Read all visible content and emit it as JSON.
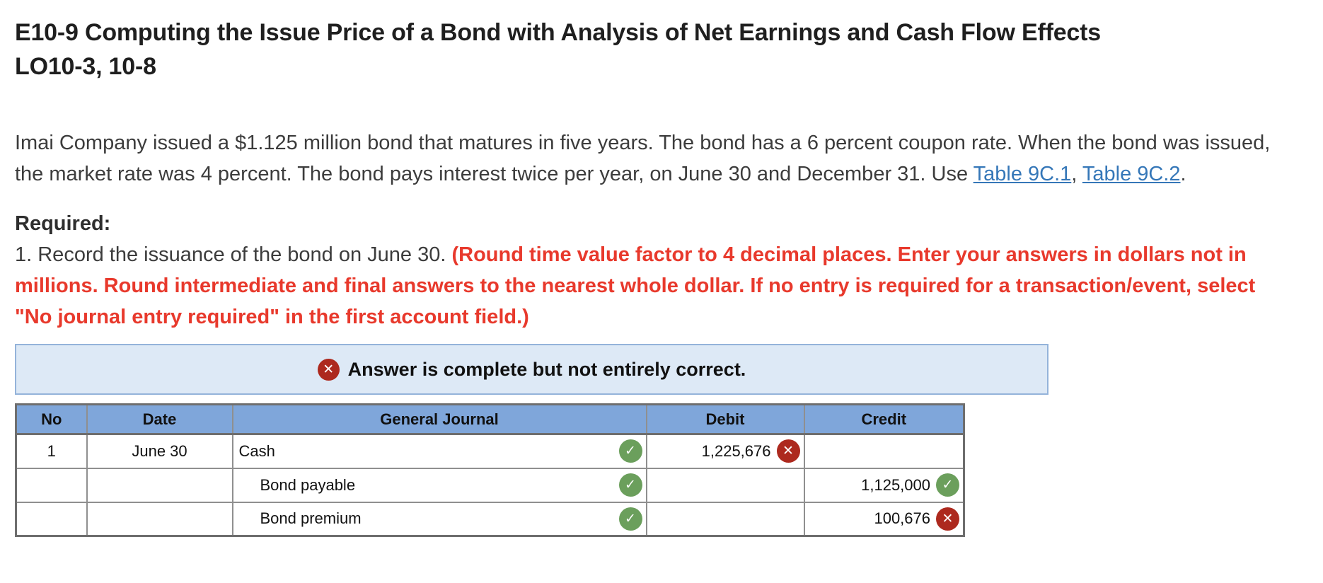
{
  "header": {
    "title_line1": "E10-9 Computing the Issue Price of a Bond with Analysis of Net Earnings and Cash Flow Effects",
    "title_line2": "LO10-3, 10-8"
  },
  "problem": {
    "text": "Imai Company issued a $1.125 million bond that matures in five years. The bond has a 6 percent coupon rate. When the bond was issued, the market rate was 4 percent. The bond pays interest twice per year, on June 30 and December 31. Use ",
    "link1": "Table 9C.1",
    "link_separator": ", ",
    "link2": "Table 9C.2",
    "period": "."
  },
  "required": {
    "label": "Required:",
    "instruction": "1. Record the issuance of the bond on June 30. ",
    "note": "(Round time value factor to 4 decimal places. Enter your answers in dollars not in millions. Round intermediate and final answers to the nearest whole dollar. If no entry is required for a transaction/event, select \"No journal entry required\" in the first account field.)"
  },
  "feedback": {
    "icon": "x-circle-icon",
    "message": "Answer is complete but not entirely correct."
  },
  "journal_table": {
    "headers": [
      "No",
      "Date",
      "General Journal",
      "Debit",
      "Credit"
    ],
    "rows": [
      {
        "no": "1",
        "date": "June 30",
        "account": "Cash",
        "indent": false,
        "account_status": "correct",
        "debit": "1,225,676",
        "debit_status": "incorrect",
        "credit": "",
        "credit_status": null
      },
      {
        "no": "",
        "date": "",
        "account": "Bond payable",
        "indent": true,
        "account_status": "correct",
        "debit": "",
        "debit_status": null,
        "credit": "1,125,000",
        "credit_status": "correct"
      },
      {
        "no": "",
        "date": "",
        "account": "Bond premium",
        "indent": true,
        "account_status": "correct",
        "debit": "",
        "debit_status": null,
        "credit": "100,676",
        "credit_status": "incorrect"
      }
    ]
  },
  "colors": {
    "header_blue": "#7fa6da",
    "banner_bg": "#dde9f6",
    "banner_border": "#94b3da",
    "cell_green": "#f4f7f0",
    "cell_pink": "#fbf0ee",
    "icon_green": "#6b9f5c",
    "icon_red": "#ad291e",
    "link_blue": "#3577b8",
    "alert_red": "#e8392c",
    "border_dark": "#6e6e6e",
    "border_mid": "#8f8f8f"
  }
}
